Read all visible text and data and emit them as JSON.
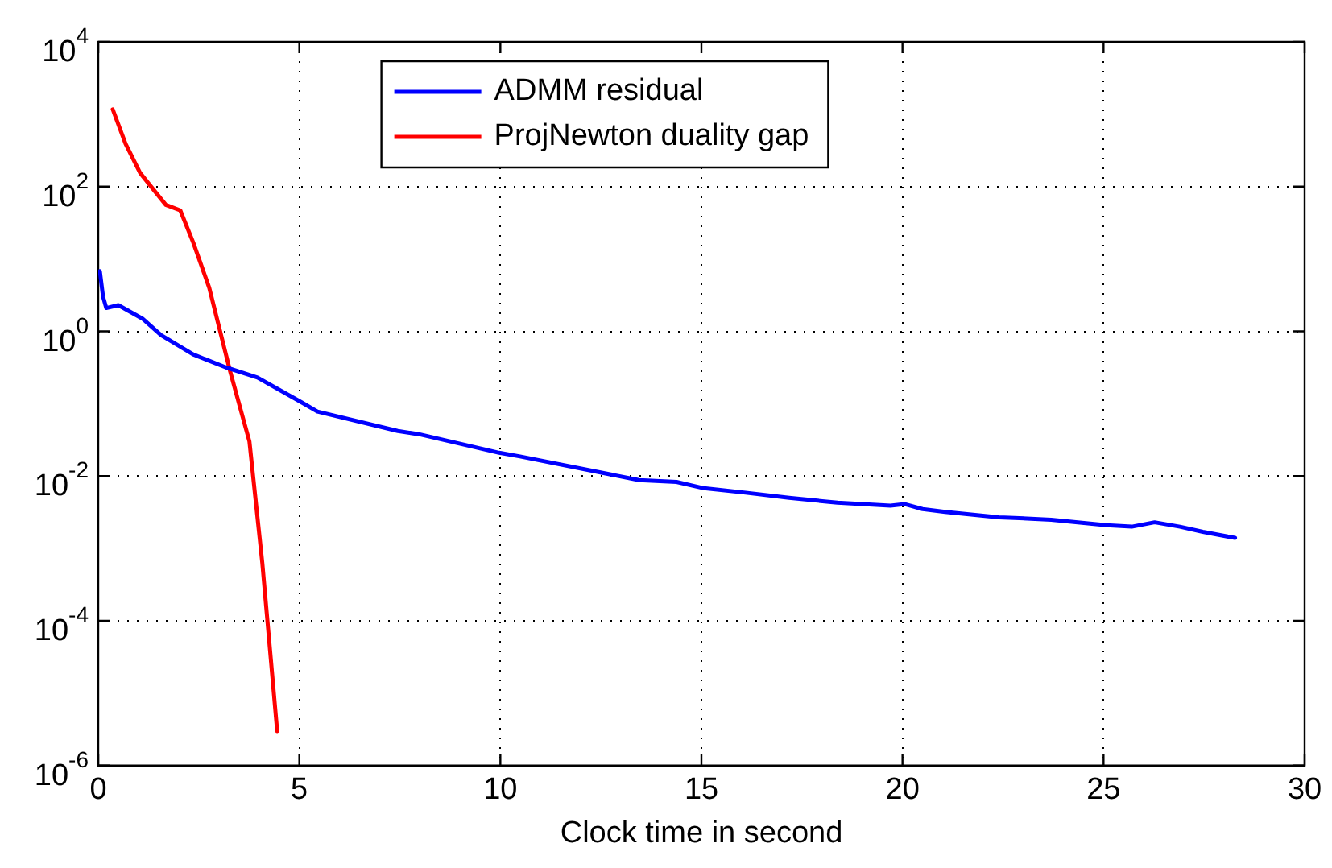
{
  "chart_data": {
    "type": "line",
    "xlabel": "Clock time in second",
    "xlim": [
      0,
      30
    ],
    "xticks": [
      0,
      5,
      10,
      15,
      20,
      25,
      30
    ],
    "ylim": [
      1e-06,
      10000
    ],
    "yticks": [
      {
        "value": 1e-06,
        "label": "10$^{-6}$"
      },
      {
        "value": 0.0001,
        "label": "10$^{-4}$"
      },
      {
        "value": 0.01,
        "label": "10$^{-2}$"
      },
      {
        "value": 1,
        "label": "10$^{0}$"
      },
      {
        "value": 100,
        "label": "10$^{2}$"
      },
      {
        "value": 10000,
        "label": "10$^{4}$"
      }
    ],
    "log": "y",
    "grid": true,
    "legend": "top",
    "marker": "none",
    "line_style": "solid",
    "series": [
      {
        "name": "ADMM residual",
        "color": "#0000ff",
        "x": [
          0.04,
          0.12,
          0.2,
          0.5,
          1.1,
          1.56,
          2.36,
          3.16,
          3.96,
          5.05,
          5.45,
          7.45,
          7.97,
          9.97,
          10.49,
          13.45,
          14.38,
          15.06,
          16.1,
          17.18,
          18.38,
          19.7,
          20.06,
          20.5,
          21.06,
          22.4,
          23.7,
          25.07,
          25.7,
          26.27,
          26.9,
          27.47,
          28.27
        ],
        "values": [
          6.8,
          3.0,
          2.1,
          2.3,
          1.5,
          0.89,
          0.48,
          0.32,
          0.23,
          0.105,
          0.078,
          0.042,
          0.038,
          0.021,
          0.0187,
          0.0088,
          0.0083,
          0.0068,
          0.0059,
          0.005,
          0.0043,
          0.0039,
          0.0041,
          0.0035,
          0.0032,
          0.0027,
          0.0025,
          0.0021,
          0.002,
          0.0023,
          0.002,
          0.0017,
          0.0014
        ]
      },
      {
        "name": "ProjNewton duality gap",
        "color": "#ff0000",
        "x": [
          0.36,
          0.68,
          1.04,
          1.36,
          1.68,
          2.04,
          2.36,
          2.76,
          3.28,
          3.76,
          4.08,
          4.45
        ],
        "values": [
          1170,
          389,
          155,
          93,
          56,
          47,
          17,
          4.0,
          0.28,
          0.03,
          0.00063,
          3e-06
        ]
      }
    ]
  }
}
